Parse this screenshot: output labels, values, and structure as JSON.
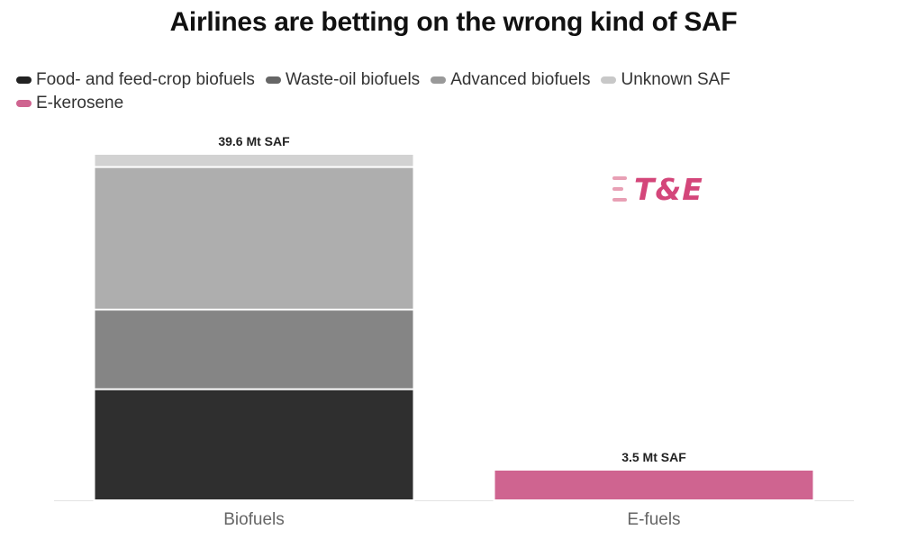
{
  "title": "Airlines are betting on the wrong kind of SAF",
  "legend": [
    {
      "label": "Food- and feed-crop biofuels",
      "color": "#222222"
    },
    {
      "label": "Waste-oil biofuels",
      "color": "#666666"
    },
    {
      "label": "Advanced biofuels",
      "color": "#999999"
    },
    {
      "label": "Unknown SAF",
      "color": "#c8c8c8"
    },
    {
      "label": "E-kerosene",
      "color": "#cf6490"
    }
  ],
  "logo": {
    "text": "T&E",
    "color": "#d4467a"
  },
  "chart_data": {
    "type": "bar",
    "stacked": true,
    "categories": [
      "Biofuels",
      "E-fuels"
    ],
    "unit": "Mt SAF",
    "ylim": [
      0,
      39.6
    ],
    "grid": false,
    "legend_position": "top-left",
    "series": [
      {
        "name": "Food- and feed-crop biofuels",
        "color": "#2f2f2f",
        "values": [
          12.7,
          0
        ]
      },
      {
        "name": "Waste-oil biofuels",
        "color": "#858585",
        "values": [
          9.1,
          0
        ]
      },
      {
        "name": "Advanced biofuels",
        "color": "#aeaeae",
        "values": [
          16.3,
          0
        ]
      },
      {
        "name": "Unknown SAF",
        "color": "#d2d2d2",
        "values": [
          1.5,
          0
        ]
      },
      {
        "name": "E-kerosene",
        "color": "#cf6490",
        "values": [
          0,
          3.5
        ]
      }
    ],
    "totals": [
      {
        "category": "Biofuels",
        "value": 39.6,
        "label": "39.6 Mt SAF"
      },
      {
        "category": "E-fuels",
        "value": 3.5,
        "label": "3.5 Mt SAF"
      }
    ]
  }
}
